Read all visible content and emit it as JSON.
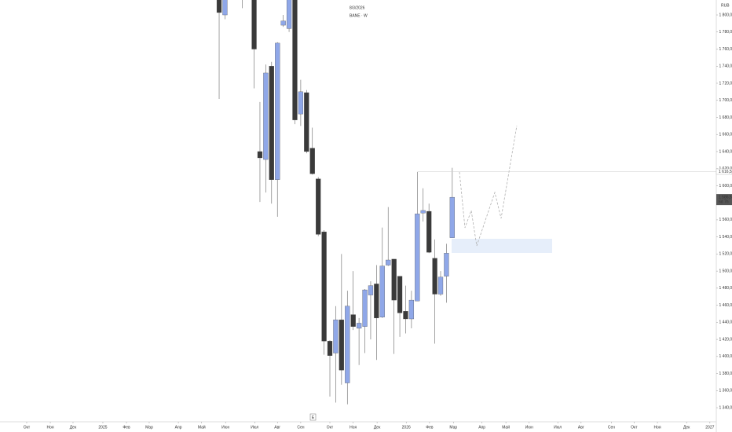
{
  "chart_data": {
    "type": "candlestick",
    "date": "8/3/2026",
    "symbol": "BANE · W",
    "currency": "RUB",
    "up_color": "#8fa7e8",
    "down_color": "#3a3a3a",
    "x": [
      37.6,
      38.6,
      41.6,
      43.6,
      44.6,
      45.6,
      46.6,
      47.6,
      48.6,
      49.6,
      50.6,
      51.6,
      52.6,
      53.6,
      54.6,
      55.6,
      56.6,
      57.6,
      58.6,
      59.6,
      60.6,
      61.6,
      62.6,
      63.6,
      64.6,
      65.6,
      66.6,
      67.6,
      68.6,
      69.6,
      70.6,
      71.6,
      72.6,
      73.6,
      74.6,
      75.6,
      76.6,
      77.6
    ],
    "open": [
      1830,
      1800,
      1835,
      1830,
      1640,
      1630.7,
      1740,
      1607,
      1788,
      1784,
      1825,
      1684,
      1709,
      1644,
      1608,
      1546,
      1418,
      1404,
      1443,
      1369,
      1449,
      1433,
      1435,
      1472,
      1485,
      1446,
      1507,
      1514,
      1494,
      1453,
      1444,
      1465,
      1568,
      1570,
      1515,
      1473,
      1494,
      1539
    ],
    "high": [
      1840,
      1825,
      1850,
      1835,
      1698,
      1742,
      1745,
      1768,
      1800,
      1830,
      1830,
      1724,
      1712,
      1668,
      1610,
      1548,
      1419,
      1459,
      1520,
      1477,
      1500,
      1445,
      1479,
      1488,
      1507,
      1551,
      1575,
      1514,
      1494,
      1483,
      1477,
      1616,
      1597,
      1579,
      1537,
      1500,
      1532,
      1621
    ],
    "low": [
      1701.6,
      1795,
      1808,
      1714,
      1581,
      1592,
      1579,
      1563.6,
      1786,
      1780,
      1672,
      1670,
      1638,
      1613,
      1541,
      1402,
      1353,
      1346,
      1367,
      1344,
      1431,
      1390,
      1404,
      1420,
      1396,
      1445,
      1506,
      1403,
      1423,
      1427,
      1433,
      1465,
      1558,
      1521,
      1415,
      1471,
      1463,
      1539
    ],
    "close": [
      1802.8,
      1820,
      1840,
      1760,
      1632.6,
      1732,
      1607,
      1767,
      1793,
      1820,
      1677,
      1710,
      1640,
      1614,
      1543,
      1418,
      1401,
      1443,
      1384,
      1459,
      1435,
      1439,
      1478,
      1483,
      1445,
      1506,
      1513,
      1466,
      1451,
      1444,
      1466,
      1567,
      1571,
      1522,
      1473,
      1493,
      1521,
      1586.5
    ],
    "last_price": {
      "value": 1586.5,
      "label": "1 586,5"
    },
    "countdown": "6d 7h",
    "high_line": {
      "value": 1616.5,
      "label": "1 616,5"
    },
    "ylim": [
      1323.5,
      1817.5
    ],
    "yticks": [
      {
        "value": 1800,
        "label": "1 800,0"
      },
      {
        "value": 1780,
        "label": "1 780,0"
      },
      {
        "value": 1760,
        "label": "1 760,0"
      },
      {
        "value": 1740,
        "label": "1 740,0"
      },
      {
        "value": 1720,
        "label": "1 720,0"
      },
      {
        "value": 1700,
        "label": "1 700,0"
      },
      {
        "value": 1680,
        "label": "1 680,0"
      },
      {
        "value": 1660,
        "label": "1 660,0"
      },
      {
        "value": 1640,
        "label": "1 640,0"
      },
      {
        "value": 1620,
        "label": "1 620,0"
      },
      {
        "value": 1600,
        "label": "1 600,0"
      },
      {
        "value": 1580,
        "label": "1 580,0"
      },
      {
        "value": 1560,
        "label": "1 560,0"
      },
      {
        "value": 1540,
        "label": "1 540,0"
      },
      {
        "value": 1520,
        "label": "1 520,0"
      },
      {
        "value": 1500,
        "label": "1 500,0"
      },
      {
        "value": 1480,
        "label": "1 480,0"
      },
      {
        "value": 1460,
        "label": "1 460,0"
      },
      {
        "value": 1440,
        "label": "1 440,0"
      },
      {
        "value": 1420,
        "label": "1 420,0"
      },
      {
        "value": 1400,
        "label": "1 400,0"
      },
      {
        "value": 1380,
        "label": "1 380,0"
      },
      {
        "value": 1360,
        "label": "1 360,0"
      },
      {
        "value": 1340,
        "label": "1 340,0"
      }
    ],
    "xlim": [
      0,
      122.9
    ],
    "xticks": [
      {
        "value": 4.58,
        "label": "Окт"
      },
      {
        "value": 8.63,
        "label": "Ноя"
      },
      {
        "value": 12.53,
        "label": "Дек"
      },
      {
        "value": 17.65,
        "label": "2025"
      },
      {
        "value": 21.7,
        "label": "Фев"
      },
      {
        "value": 25.6,
        "label": "Мар"
      },
      {
        "value": 30.6,
        "label": "Апр"
      },
      {
        "value": 34.6,
        "label": "Май"
      },
      {
        "value": 38.7,
        "label": "Июн"
      },
      {
        "value": 43.7,
        "label": "Июл"
      },
      {
        "value": 47.6,
        "label": "Авг"
      },
      {
        "value": 51.6,
        "label": "Сен"
      },
      {
        "value": 56.6,
        "label": "Окт"
      },
      {
        "value": 60.6,
        "label": "Ноя"
      },
      {
        "value": 64.7,
        "label": "Дек"
      },
      {
        "value": 69.7,
        "label": "2026"
      },
      {
        "value": 73.7,
        "label": "Фев"
      },
      {
        "value": 77.8,
        "label": "Мар"
      },
      {
        "value": 82.7,
        "label": "Апр"
      },
      {
        "value": 86.8,
        "label": "Май"
      },
      {
        "value": 90.8,
        "label": "Июн"
      },
      {
        "value": 95.7,
        "label": "Июл"
      },
      {
        "value": 99.7,
        "label": "Авг"
      },
      {
        "value": 104.9,
        "label": "Сен"
      },
      {
        "value": 108.8,
        "label": "Окт"
      },
      {
        "value": 112.8,
        "label": "Ноя"
      },
      {
        "value": 117.8,
        "label": "Дек"
      },
      {
        "value": 121.8,
        "label": "2027"
      }
    ],
    "scroll_button": "E"
  }
}
